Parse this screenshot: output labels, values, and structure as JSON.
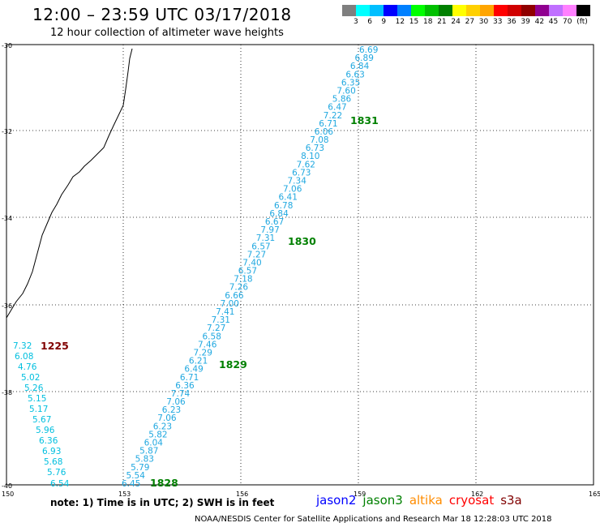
{
  "header": {
    "title": "12:00 – 23:59 UTC 03/17/2018",
    "subtitle": "12 hour collection of altimeter wave heights"
  },
  "color_legend": {
    "colors": [
      "#7f7f7f",
      "#00ffff",
      "#00bfff",
      "#0000ff",
      "#0080ff",
      "#00ff00",
      "#00c000",
      "#008000",
      "#ffff00",
      "#ffd000",
      "#ffa500",
      "#ff0000",
      "#d00000",
      "#900000",
      "#900090",
      "#c070ff",
      "#ff80ff",
      "#000000"
    ],
    "labels": [
      "3",
      "6",
      "9",
      "12",
      "15",
      "18",
      "21",
      "24",
      "27",
      "30",
      "33",
      "36",
      "39",
      "42",
      "45",
      "70",
      "(ft)"
    ]
  },
  "map": {
    "y_ticks": [
      "-30",
      "-32",
      "-34",
      "-36",
      "-38",
      "-40"
    ],
    "x_ticks": [
      "150",
      "153",
      "156",
      "159",
      "162",
      "165"
    ],
    "passes": [
      {
        "id": "pass-1225",
        "time_label": "1225",
        "label_color": "#800000",
        "value_color": "#00bfdf",
        "values": [
          "7.32",
          "6.08",
          "4.76",
          "5.02",
          "5.26",
          "5.15",
          "5.17",
          "5.67",
          "5.96",
          "6.36",
          "6.93",
          "5.68",
          "5.76",
          "6.54"
        ]
      },
      {
        "id": "pass-jason3",
        "value_color": "#20a8e0",
        "values": [
          "6.69",
          "6.89",
          "6.84",
          "6.63",
          "6.35",
          "7.60",
          "5.86",
          "6.47",
          "7.22",
          "6.71",
          "6.06",
          "7.08",
          "6.73",
          "8.10",
          "7.62",
          "6.73",
          "7.34",
          "7.06",
          "6.41",
          "6.78",
          "6.84",
          "6.67",
          "7.97",
          "7.31",
          "6.57",
          "7.27",
          "7.40",
          "6.57",
          "7.18",
          "7.26",
          "6.66",
          "7.00",
          "7.41",
          "7.31",
          "7.27",
          "6.58",
          "7.46",
          "7.29",
          "6.21",
          "6.49",
          "6.71",
          "6.36",
          "7.74",
          "7.06",
          "6.23",
          "7.06",
          "6.23",
          "5.82",
          "6.04",
          "5.87",
          "5.83",
          "5.79",
          "5.54",
          "6.45"
        ],
        "time_labels": [
          {
            "text": "1831",
            "color": "#008000"
          },
          {
            "text": "1830",
            "color": "#008000"
          },
          {
            "text": "1829",
            "color": "#008000"
          },
          {
            "text": "1828",
            "color": "#008000"
          }
        ]
      }
    ]
  },
  "note": "note: 1) Time is in UTC; 2) SWH is in feet",
  "satellites": [
    {
      "name": "jason2",
      "color": "#0000ff"
    },
    {
      "name": "jason3",
      "color": "#008000"
    },
    {
      "name": "altika",
      "color": "#ff8c00"
    },
    {
      "name": "cryosat",
      "color": "#ff0000"
    },
    {
      "name": "s3a",
      "color": "#800000"
    }
  ],
  "footer": "NOAA/NESDIS Center for Satellite Applications and Research   Mar 18 12:28:03 UTC 2018"
}
